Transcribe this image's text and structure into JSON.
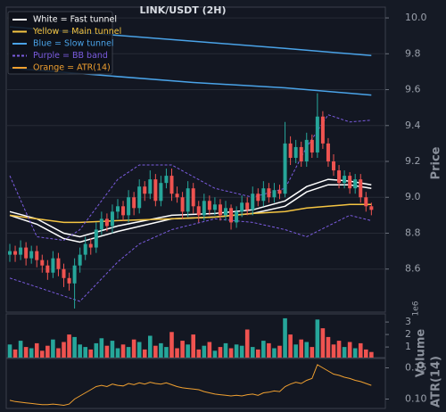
{
  "chart_data": {
    "type": "candlestick",
    "title": "LINK/USDT (2H)",
    "ylabel": "Price",
    "ylim": [
      8.36,
      10.06
    ],
    "yticks": [
      {
        "value": 8.6,
        "label": "8.6"
      },
      {
        "value": 8.8,
        "label": "8.8"
      },
      {
        "value": 9.0,
        "label": "9.0"
      },
      {
        "value": 9.2,
        "label": "9.2"
      },
      {
        "value": 9.4,
        "label": "9.4"
      },
      {
        "value": 9.6,
        "label": "9.6"
      },
      {
        "value": 9.8,
        "label": "9.8"
      },
      {
        "value": 10.0,
        "label": "10.0"
      }
    ],
    "grid": true,
    "up_color": "#26a69a",
    "down_color": "#ef5350",
    "open": [
      8.68,
      8.7,
      8.68,
      8.72,
      8.66,
      8.7,
      8.65,
      8.62,
      8.58,
      8.66,
      8.6,
      8.55,
      8.52,
      8.62,
      8.68,
      8.74,
      8.72,
      8.82,
      8.88,
      8.84,
      8.92,
      8.95,
      8.9,
      9.0,
      8.94,
      9.06,
      9.02,
      9.1,
      8.98,
      9.08,
      9.12,
      9.02,
      9.0,
      8.92,
      9.05,
      8.95,
      8.9,
      8.98,
      8.93,
      8.96,
      8.9,
      8.94,
      8.86,
      8.92,
      8.97,
      8.93,
      9.02,
      8.98,
      9.05,
      9.0,
      9.04,
      9.02,
      9.3,
      9.22,
      9.28,
      9.2,
      9.32,
      9.25,
      9.45,
      9.3,
      9.2,
      9.15,
      9.08,
      9.12,
      9.05,
      9.1,
      9.0,
      8.95
    ],
    "high": [
      8.74,
      8.73,
      8.76,
      8.75,
      8.73,
      8.73,
      8.68,
      8.65,
      8.7,
      8.69,
      8.63,
      8.58,
      8.66,
      8.72,
      8.78,
      8.77,
      8.86,
      8.92,
      8.91,
      8.96,
      8.99,
      8.98,
      9.04,
      9.03,
      9.1,
      9.09,
      9.15,
      9.13,
      9.12,
      9.16,
      9.16,
      9.06,
      9.03,
      9.09,
      9.08,
      8.98,
      9.02,
      9.01,
      9.0,
      8.99,
      8.98,
      8.96,
      8.95,
      9.01,
      9.0,
      9.06,
      9.05,
      9.09,
      9.08,
      9.08,
      9.07,
      9.42,
      9.34,
      9.32,
      9.31,
      9.36,
      9.35,
      9.58,
      9.48,
      9.33,
      9.24,
      9.18,
      9.15,
      9.14,
      9.13,
      9.13,
      9.03,
      8.97
    ],
    "low": [
      8.64,
      8.64,
      8.65,
      8.62,
      8.63,
      8.61,
      8.58,
      8.54,
      8.55,
      8.56,
      8.5,
      8.48,
      8.38,
      8.58,
      8.65,
      8.68,
      8.69,
      8.79,
      8.81,
      8.8,
      8.88,
      8.87,
      8.86,
      8.9,
      8.91,
      8.98,
      8.99,
      8.95,
      8.95,
      9.05,
      8.98,
      8.97,
      8.88,
      8.89,
      8.91,
      8.86,
      8.87,
      8.9,
      8.9,
      8.87,
      8.87,
      8.82,
      8.83,
      8.89,
      8.9,
      8.9,
      8.95,
      8.95,
      8.97,
      8.97,
      8.99,
      9.0,
      9.18,
      9.19,
      9.17,
      9.17,
      9.22,
      9.22,
      9.27,
      9.17,
      9.12,
      9.05,
      9.05,
      9.02,
      9.02,
      8.97,
      8.92,
      8.9
    ],
    "close": [
      8.7,
      8.68,
      8.72,
      8.66,
      8.7,
      8.65,
      8.62,
      8.58,
      8.66,
      8.6,
      8.55,
      8.52,
      8.62,
      8.68,
      8.74,
      8.72,
      8.82,
      8.88,
      8.84,
      8.92,
      8.95,
      8.9,
      9.0,
      8.94,
      9.06,
      9.02,
      9.1,
      8.98,
      9.08,
      9.12,
      9.02,
      9.0,
      8.92,
      9.05,
      8.95,
      8.9,
      8.98,
      8.93,
      8.96,
      8.9,
      8.94,
      8.86,
      8.92,
      8.97,
      8.93,
      9.02,
      8.98,
      9.05,
      9.0,
      9.04,
      9.02,
      9.3,
      9.22,
      9.28,
      9.2,
      9.32,
      9.25,
      9.45,
      9.3,
      9.2,
      9.15,
      9.08,
      9.12,
      9.05,
      9.1,
      9.0,
      8.95,
      8.93
    ],
    "overlays": [
      {
        "name": "White = Fast tunnel",
        "color": "#ffffff",
        "dashed": false,
        "lines": [
          {
            "x": [
              0,
              5,
              10,
              13,
              20,
              30,
              38,
              45,
              51,
              55,
              59,
              63,
              67
            ],
            "values": [
              8.92,
              8.88,
              8.8,
              8.78,
              8.84,
              8.9,
              8.91,
              8.93,
              8.98,
              9.06,
              9.1,
              9.09,
              9.07
            ]
          },
          {
            "x": [
              0,
              5,
              10,
              13,
              20,
              30,
              38,
              45,
              51,
              55,
              59,
              63,
              67
            ],
            "values": [
              8.9,
              8.85,
              8.77,
              8.75,
              8.81,
              8.88,
              8.89,
              8.91,
              8.95,
              9.03,
              9.07,
              9.07,
              9.05
            ]
          }
        ]
      },
      {
        "name": "Yellow = Main tunnel",
        "color": "#f5c542",
        "dashed": false,
        "lines": [
          {
            "x": [
              0,
              5,
              10,
              13,
              20,
              30,
              38,
              45,
              51,
              55,
              59,
              63,
              67
            ],
            "values": [
              8.9,
              8.88,
              8.86,
              8.86,
              8.87,
              8.88,
              8.89,
              8.91,
              8.92,
              8.94,
              8.95,
              8.96,
              8.96
            ]
          }
        ]
      },
      {
        "name": "Blue = Slow tunnel",
        "color": "#4aa3e8",
        "dashed": false,
        "lines": [
          {
            "x": [
              0,
              17,
              34,
              51,
              67
            ],
            "values": [
              9.95,
              9.91,
              9.87,
              9.83,
              9.79
            ]
          },
          {
            "x": [
              0,
              17,
              34,
              51,
              67
            ],
            "values": [
              9.72,
              9.68,
              9.64,
              9.61,
              9.57
            ]
          }
        ]
      },
      {
        "name": "Purple = BB band",
        "color": "#7b5ce0",
        "dashed": true,
        "lines": [
          {
            "x": [
              0,
              5,
              10,
              13,
              20,
              24,
              30,
              38,
              45,
              51,
              55,
              59,
              63,
              67
            ],
            "values": [
              9.12,
              8.78,
              8.76,
              8.82,
              9.1,
              9.18,
              9.18,
              9.05,
              9.0,
              9.05,
              9.28,
              9.46,
              9.42,
              9.43
            ]
          },
          {
            "x": [
              0,
              5,
              10,
              13,
              20,
              24,
              30,
              38,
              45,
              51,
              55,
              59,
              63,
              67
            ],
            "values": [
              8.55,
              8.5,
              8.45,
              8.42,
              8.64,
              8.74,
              8.82,
              8.88,
              8.86,
              8.82,
              8.78,
              8.84,
              8.9,
              8.87
            ]
          }
        ]
      }
    ],
    "legend_extra": {
      "name": "Orange = ATR(14)",
      "color": "#f0a030"
    },
    "volume": {
      "label": "Volume",
      "scale_label": "1e6",
      "ylim": [
        0.15,
        3.65
      ],
      "yticks": [
        1,
        2,
        3
      ],
      "values": [
        1.2,
        0.8,
        1.5,
        1.0,
        0.9,
        1.3,
        0.7,
        1.1,
        1.6,
        0.9,
        1.4,
        2.0,
        1.8,
        1.2,
        1.0,
        0.8,
        1.3,
        1.7,
        1.1,
        1.5,
        0.9,
        1.2,
        1.0,
        1.6,
        1.4,
        0.8,
        1.9,
        1.1,
        1.3,
        1.0,
        2.2,
        0.9,
        1.5,
        1.2,
        2.0,
        0.8,
        1.1,
        1.4,
        0.7,
        1.0,
        1.3,
        0.9,
        1.2,
        1.1,
        2.4,
        1.0,
        0.8,
        1.5,
        1.3,
        0.9,
        1.1,
        3.3,
        2.0,
        1.2,
        1.6,
        1.4,
        1.0,
        3.2,
        2.5,
        1.8,
        1.2,
        1.5,
        1.0,
        1.4,
        0.9,
        1.3,
        0.8,
        0.6
      ]
    },
    "atr": {
      "label": "ATR(14)",
      "color": "#f0a030",
      "ylim": [
        0.085,
        0.165
      ],
      "yticks": [
        {
          "value": 0.1,
          "label": "0.10"
        },
        {
          "value": 0.15,
          "label": "0.15"
        }
      ],
      "values": [
        0.098,
        0.096,
        0.095,
        0.094,
        0.093,
        0.092,
        0.091,
        0.091,
        0.092,
        0.091,
        0.09,
        0.092,
        0.1,
        0.105,
        0.11,
        0.115,
        0.12,
        0.122,
        0.12,
        0.124,
        0.122,
        0.121,
        0.125,
        0.123,
        0.126,
        0.124,
        0.127,
        0.125,
        0.124,
        0.126,
        0.123,
        0.12,
        0.118,
        0.117,
        0.116,
        0.115,
        0.112,
        0.11,
        0.108,
        0.107,
        0.106,
        0.105,
        0.106,
        0.105,
        0.107,
        0.108,
        0.106,
        0.11,
        0.111,
        0.113,
        0.112,
        0.12,
        0.124,
        0.127,
        0.125,
        0.13,
        0.133,
        0.155,
        0.15,
        0.145,
        0.14,
        0.138,
        0.135,
        0.133,
        0.13,
        0.128,
        0.125,
        0.122
      ]
    }
  }
}
